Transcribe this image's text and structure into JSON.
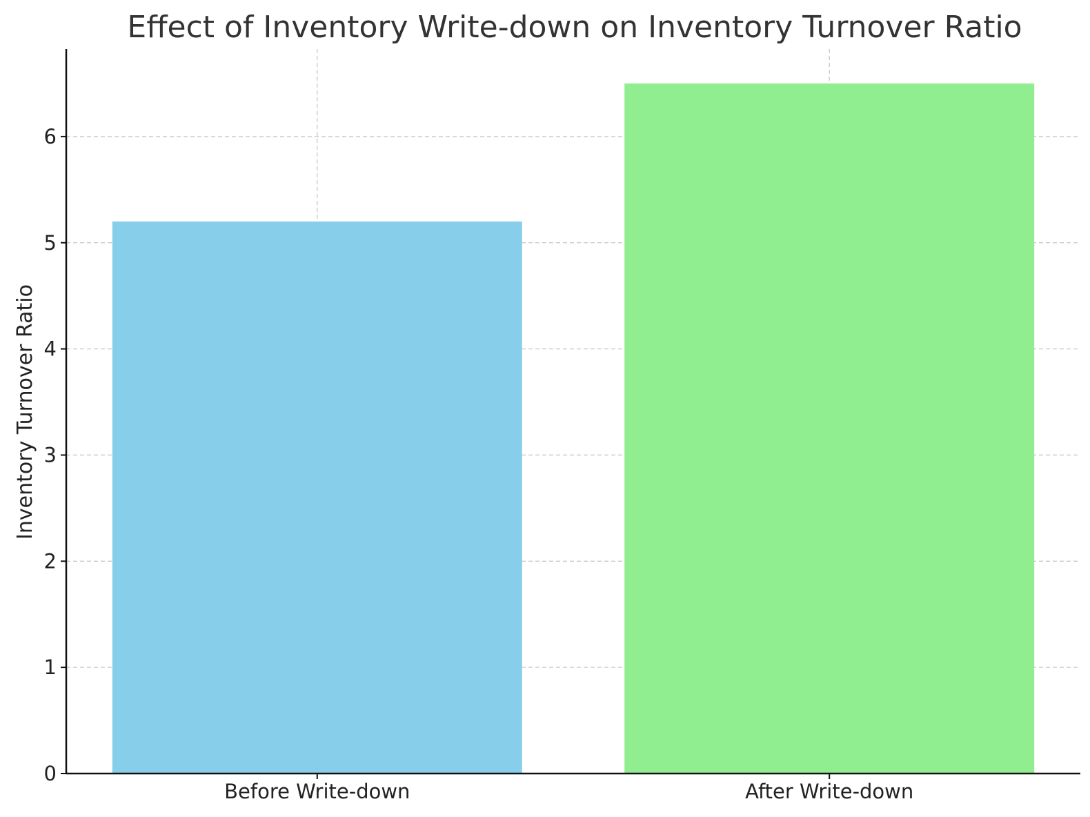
{
  "chart_data": {
    "type": "bar",
    "title": "Effect of Inventory Write-down on Inventory Turnover Ratio",
    "xlabel": "",
    "ylabel": "Inventory Turnover Ratio",
    "categories": [
      "Before Write-down",
      "After Write-down"
    ],
    "values": [
      5.2,
      6.5
    ],
    "colors": [
      "#87CEEB",
      "#90EE90"
    ],
    "ylim": [
      0,
      6.825
    ],
    "yticks": [
      0,
      1,
      2,
      3,
      4,
      5,
      6
    ],
    "grid": true,
    "legend": "none"
  }
}
